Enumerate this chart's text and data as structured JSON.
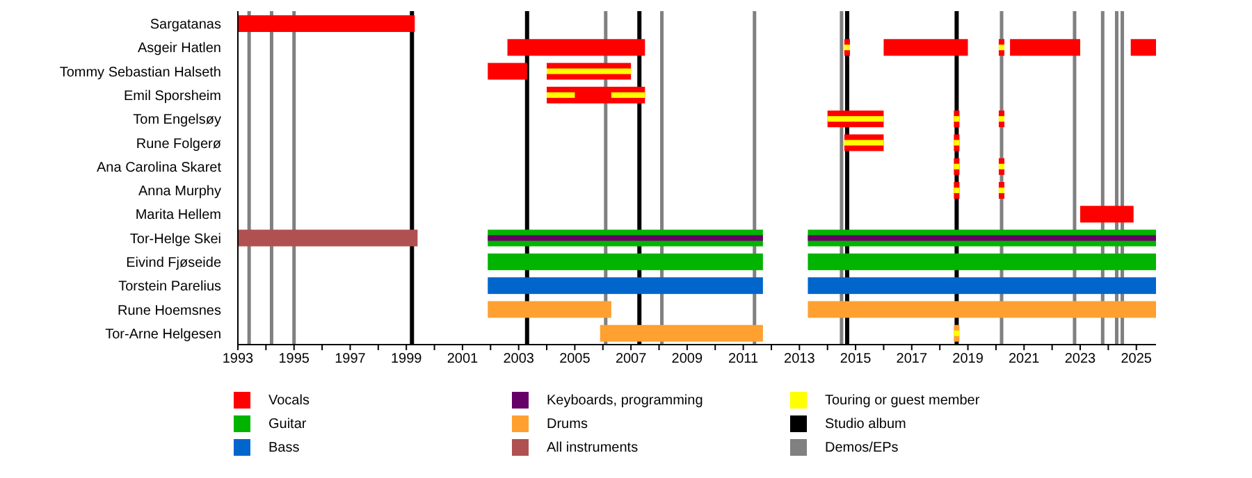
{
  "chart_data": {
    "type": "bar",
    "orientation": "horizontal",
    "legend": "bottom",
    "categories": [
      "Sargatanas",
      "Asgeir Hatlen",
      "Tommy Sebastian Halseth",
      "Emil Sporsheim",
      "Tom Engelsøy",
      "Rune Folgerø",
      "Ana Carolina Skaret",
      "Anna Murphy",
      "Marita Hellem",
      "Tor-Helge Skei",
      "Eivind Fjøseide",
      "Torstein Parelius",
      "Rune Hoemsnes",
      "Tor-Arne Helgesen"
    ],
    "xlim": [
      1993,
      2025.7
    ],
    "xticks": [
      1993,
      {
        "value": 1994,
        "label": null
      },
      1995,
      {
        "value": 1996,
        "label": null
      },
      1997,
      {
        "value": 1998,
        "label": null
      },
      1999,
      {
        "value": 2000,
        "label": null
      },
      2001,
      {
        "value": 2002,
        "label": null
      },
      2003,
      {
        "value": 2004,
        "label": null
      },
      2005,
      {
        "value": 2006,
        "label": null
      },
      2007,
      {
        "value": 2008,
        "label": null
      },
      2009,
      {
        "value": 2010,
        "label": null
      },
      2011,
      {
        "value": 2012,
        "label": null
      },
      2013,
      {
        "value": 2014,
        "label": null
      },
      2015,
      {
        "value": 2016,
        "label": null
      },
      2017,
      {
        "value": 2018,
        "label": null
      },
      2019,
      {
        "value": 2020,
        "label": null
      },
      2021,
      {
        "value": 2022,
        "label": null
      },
      2023,
      {
        "value": 2024,
        "label": null
      },
      2025
    ],
    "series": [
      {
        "name": "Vocals",
        "color": "#ff0000",
        "values": [
          6.3,
          4.9,
          1.4,
          3.5,
          2.0,
          1.4,
          0.2,
          0.2,
          1.9,
          null,
          null,
          null,
          null,
          null
        ],
        "base": [
          1993,
          2002.6,
          2001.9,
          2004.0,
          2014.0,
          2014.6,
          2018.5,
          2018.5,
          2023.0,
          null,
          null,
          null,
          null,
          null
        ]
      },
      {
        "name": "Guitar",
        "color": "#00b400",
        "values": [
          null,
          null,
          null,
          null,
          null,
          null,
          null,
          null,
          null,
          9.8,
          9.8,
          null,
          null,
          null
        ],
        "base": [
          null,
          null,
          null,
          null,
          null,
          null,
          null,
          null,
          null,
          2001.9,
          2001.9,
          null,
          null,
          null
        ]
      },
      {
        "name": "Bass",
        "color": "#0066cc",
        "values": [
          null,
          null,
          null,
          null,
          null,
          null,
          null,
          null,
          null,
          null,
          null,
          9.8,
          null,
          null
        ],
        "base": [
          null,
          null,
          null,
          null,
          null,
          null,
          null,
          null,
          null,
          null,
          null,
          2001.9,
          null,
          null
        ]
      },
      {
        "name": "Keyboards, programming",
        "color": "#660066",
        "values": [
          null,
          null,
          null,
          null,
          null,
          null,
          null,
          null,
          null,
          9.8,
          null,
          null,
          null,
          null
        ],
        "base": [
          null,
          null,
          null,
          null,
          null,
          null,
          null,
          null,
          null,
          2001.9,
          null,
          null,
          null,
          null
        ]
      },
      {
        "name": "Drums",
        "color": "#ffa030",
        "values": [
          null,
          null,
          null,
          null,
          null,
          null,
          null,
          null,
          null,
          null,
          null,
          null,
          4.4,
          5.8
        ],
        "base": [
          null,
          null,
          null,
          null,
          null,
          null,
          null,
          null,
          null,
          null,
          null,
          null,
          2001.9,
          2005.9
        ]
      },
      {
        "name": "All instruments",
        "color": "#b05050",
        "values": [
          null,
          null,
          null,
          null,
          null,
          null,
          null,
          null,
          null,
          6.4,
          null,
          null,
          null,
          null
        ],
        "base": [
          null,
          null,
          null,
          null,
          null,
          null,
          null,
          null,
          null,
          1993,
          null,
          null,
          null,
          null
        ]
      },
      {
        "color": "#ff0000",
        "values": [
          null,
          0.2,
          3.0,
          null,
          0.2,
          0.2,
          0.2,
          0.2,
          null,
          null,
          null,
          null,
          null,
          null
        ],
        "base": [
          null,
          2014.6,
          2004.0,
          null,
          2018.5,
          2018.5,
          2020.1,
          2020.1,
          null,
          null,
          null,
          null,
          null,
          null
        ]
      },
      {
        "color": "#ff0000",
        "values": [
          null,
          3.0,
          null,
          null,
          0.2,
          null,
          null,
          null,
          null,
          null,
          null,
          null,
          null,
          null
        ],
        "base": [
          null,
          2016.0,
          null,
          null,
          2020.1,
          null,
          null,
          null,
          null,
          null,
          null,
          null,
          null,
          null
        ]
      },
      {
        "color": "#ff0000",
        "values": [
          null,
          0.2,
          null,
          null,
          null,
          null,
          null,
          null,
          null,
          null,
          null,
          null,
          null,
          null
        ],
        "base": [
          null,
          2020.1,
          null,
          null,
          null,
          null,
          null,
          null,
          null,
          null,
          null,
          null,
          null,
          null
        ]
      },
      {
        "color": "#ff0000",
        "values": [
          null,
          2.5,
          null,
          null,
          null,
          null,
          null,
          null,
          null,
          null,
          null,
          null,
          null,
          null
        ],
        "base": [
          null,
          2020.5,
          null,
          null,
          null,
          null,
          null,
          null,
          null,
          null,
          null,
          null,
          null,
          null
        ]
      },
      {
        "color": "#ff0000",
        "values": [
          null,
          0.9,
          null,
          null,
          null,
          null,
          null,
          null,
          null,
          null,
          null,
          null,
          null,
          null
        ],
        "base": [
          null,
          2024.8,
          null,
          null,
          null,
          null,
          null,
          null,
          null,
          null,
          null,
          null,
          null,
          null
        ]
      },
      {
        "color": "#00b400",
        "values": [
          null,
          null,
          null,
          null,
          null,
          null,
          null,
          null,
          null,
          12.4,
          12.4,
          null,
          null,
          null
        ],
        "base": [
          null,
          null,
          null,
          null,
          null,
          null,
          null,
          null,
          null,
          2013.3,
          2013.3,
          null,
          null,
          null
        ]
      },
      {
        "color": "#660066",
        "values": [
          null,
          null,
          null,
          null,
          null,
          null,
          null,
          null,
          null,
          12.4,
          null,
          null,
          null,
          null
        ],
        "base": [
          null,
          null,
          null,
          null,
          null,
          null,
          null,
          null,
          null,
          2013.3,
          null,
          null,
          null,
          null
        ]
      },
      {
        "color": "#0066cc",
        "values": [
          null,
          null,
          null,
          null,
          null,
          null,
          null,
          null,
          null,
          null,
          null,
          12.4,
          null,
          null
        ],
        "base": [
          null,
          null,
          null,
          null,
          null,
          null,
          null,
          null,
          null,
          null,
          null,
          2013.3,
          null,
          null
        ]
      },
      {
        "color": "#ffa030",
        "values": [
          null,
          null,
          null,
          null,
          null,
          null,
          null,
          null,
          null,
          null,
          null,
          null,
          12.4,
          0.2
        ],
        "base": [
          null,
          null,
          null,
          null,
          null,
          null,
          null,
          null,
          null,
          null,
          null,
          null,
          2013.3,
          2018.5
        ]
      },
      {
        "name": "Touring or guest member",
        "color": "#ffff00",
        "values": [
          null,
          0.2,
          3.0,
          1.0,
          2.0,
          1.4,
          0.2,
          0.2,
          null,
          null,
          null,
          null,
          null,
          0.2
        ],
        "base": [
          null,
          2014.6,
          2004.0,
          2004.0,
          2014.0,
          2014.6,
          2018.5,
          2018.5,
          null,
          null,
          null,
          null,
          null,
          2018.5
        ]
      },
      {
        "color": "#ffff00",
        "values": [
          null,
          0.2,
          null,
          1.2,
          0.2,
          0.2,
          0.2,
          0.2,
          null,
          null,
          null,
          null,
          null,
          null
        ],
        "base": [
          null,
          2020.1,
          null,
          2006.3,
          2018.5,
          2018.5,
          2020.1,
          2020.1,
          null,
          null,
          null,
          null,
          null,
          null
        ]
      },
      {
        "color": "#ffff00",
        "values": [
          null,
          null,
          null,
          null,
          0.2,
          null,
          null,
          null,
          null,
          null,
          null,
          null,
          null,
          null
        ],
        "base": [
          null,
          null,
          null,
          null,
          2020.1,
          null,
          null,
          null,
          null,
          null,
          null,
          null,
          null,
          null
        ]
      }
    ],
    "ref_lines": [
      {
        "axis": "x",
        "value": 1999.2,
        "color": "#000000",
        "label": "Studio album"
      },
      {
        "axis": "x",
        "value": 2003.3,
        "color": "#000000"
      },
      {
        "axis": "x",
        "value": 2007.3,
        "color": "#000000"
      },
      {
        "axis": "x",
        "value": 2014.7,
        "color": "#000000"
      },
      {
        "axis": "x",
        "value": 2018.6,
        "color": "#000000"
      },
      {
        "axis": "x",
        "value": 1993.4,
        "color": "#808080",
        "label": "Demos/EPs"
      },
      {
        "axis": "x",
        "value": 1994.2,
        "color": "#808080"
      },
      {
        "axis": "x",
        "value": 1995.0,
        "color": "#808080"
      },
      {
        "axis": "x",
        "value": 2006.1,
        "color": "#808080"
      },
      {
        "axis": "x",
        "value": 2008.1,
        "color": "#808080"
      },
      {
        "axis": "x",
        "value": 2011.4,
        "color": "#808080"
      },
      {
        "axis": "x",
        "value": 2014.5,
        "color": "#808080"
      },
      {
        "axis": "x",
        "value": 2020.2,
        "color": "#808080"
      },
      {
        "axis": "x",
        "value": 2022.8,
        "color": "#808080"
      },
      {
        "axis": "x",
        "value": 2023.8,
        "color": "#808080"
      },
      {
        "axis": "x",
        "value": 2024.3,
        "color": "#808080"
      },
      {
        "axis": "x",
        "value": 2024.5,
        "color": "#808080"
      }
    ]
  }
}
